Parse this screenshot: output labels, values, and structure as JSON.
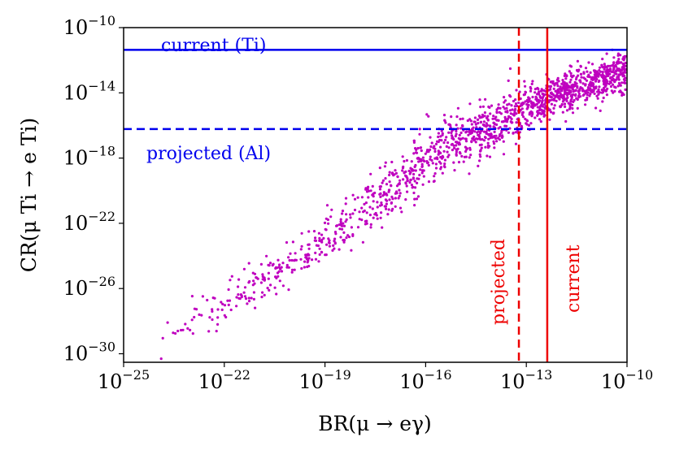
{
  "chart_data": {
    "type": "scatter",
    "xlabel": "BR(μ → eγ)",
    "ylabel": "CR(μ Ti → e Ti)",
    "xscale": "log",
    "yscale": "log",
    "xlim": [
      1e-25,
      1e-10
    ],
    "ylim": [
      3e-31,
      1e-10
    ],
    "x_ticks": [
      {
        "base": "10",
        "exp": "−25",
        "value": 1e-25
      },
      {
        "base": "10",
        "exp": "−22",
        "value": 1e-22
      },
      {
        "base": "10",
        "exp": "−19",
        "value": 1e-19
      },
      {
        "base": "10",
        "exp": "−16",
        "value": 1e-16
      },
      {
        "base": "10",
        "exp": "−13",
        "value": 1e-13
      },
      {
        "base": "10",
        "exp": "−10",
        "value": 1e-10
      }
    ],
    "y_ticks": [
      {
        "base": "10",
        "exp": "−10",
        "value": 1e-10
      },
      {
        "base": "10",
        "exp": "−14",
        "value": 1e-14
      },
      {
        "base": "10",
        "exp": "−18",
        "value": 1e-18
      },
      {
        "base": "10",
        "exp": "−22",
        "value": 1e-22
      },
      {
        "base": "10",
        "exp": "−26",
        "value": 1e-26
      },
      {
        "base": "10",
        "exp": "−30",
        "value": 1e-30
      }
    ],
    "scatter_color": "#bf00bf",
    "hlines": [
      {
        "label": "current (Ti)",
        "y": 4.3e-12,
        "style": "solid",
        "color": "#0000ee"
      },
      {
        "label": "projected (Al)",
        "y": 6e-17,
        "style": "dashed",
        "color": "#0000ee"
      }
    ],
    "vlines": [
      {
        "label": "projected",
        "x": 6e-14,
        "style": "dashed",
        "color": "#ee0000"
      },
      {
        "label": "current",
        "x": 4.2e-13,
        "style": "solid",
        "color": "#ee0000"
      }
    ],
    "scatter_trend": {
      "description": "dense band of points",
      "points": [
        {
          "x": 3e-25,
          "y": 5e-31
        },
        {
          "x": 1e-22,
          "y": 1e-27
        },
        {
          "x": 1e-19,
          "y": 1e-23
        },
        {
          "x": 1e-17,
          "y": 1e-20
        },
        {
          "x": 1e-16,
          "y": 1e-18
        },
        {
          "x": 1e-14,
          "y": 1e-16
        },
        {
          "x": 1e-12,
          "y": 1e-14
        },
        {
          "x": 1e-10,
          "y": 2e-13
        }
      ]
    }
  }
}
